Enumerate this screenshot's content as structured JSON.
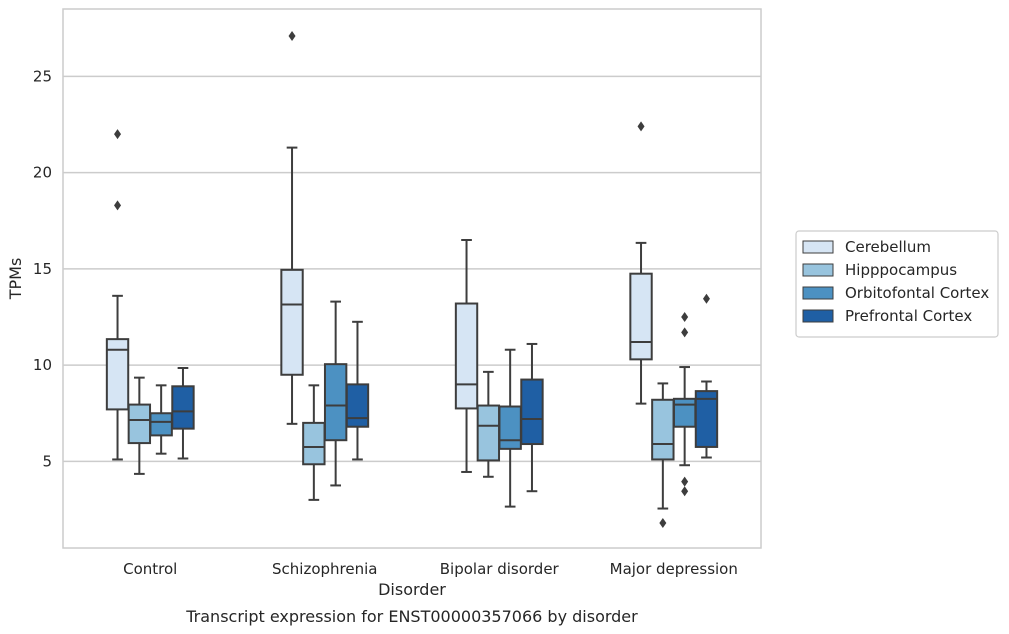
{
  "chart_data": {
    "type": "box",
    "title": "Transcript expression for ENST00000357066 by disorder",
    "xlabel": "Disorder",
    "ylabel": "TPMs",
    "ylim": [
      0.5,
      28.5
    ],
    "yticks": [
      5,
      10,
      15,
      20,
      25
    ],
    "grid": true,
    "legend_position": "right",
    "categories": [
      "Control",
      "Schizophrenia",
      "Bipolar disorder",
      "Major depression"
    ],
    "series": [
      {
        "name": "Cerebellum",
        "color": "#d6e5f4",
        "boxes": [
          {
            "whislo": 5.1,
            "q1": 7.7,
            "med": 10.8,
            "q3": 11.35,
            "whishi": 13.6,
            "fliers": [
              18.3,
              22.0
            ]
          },
          {
            "whislo": 6.95,
            "q1": 9.5,
            "med": 13.15,
            "q3": 14.95,
            "whishi": 21.3,
            "fliers": [
              27.1
            ]
          },
          {
            "whislo": 4.45,
            "q1": 7.75,
            "med": 9.0,
            "q3": 13.2,
            "whishi": 16.5,
            "fliers": []
          },
          {
            "whislo": 8.0,
            "q1": 10.3,
            "med": 11.2,
            "q3": 14.75,
            "whishi": 16.35,
            "fliers": [
              22.4
            ]
          }
        ]
      },
      {
        "name": "Hipppocampus",
        "color": "#98c4de",
        "boxes": [
          {
            "whislo": 4.35,
            "q1": 5.95,
            "med": 7.15,
            "q3": 7.95,
            "whishi": 9.35,
            "fliers": []
          },
          {
            "whislo": 3.0,
            "q1": 4.85,
            "med": 5.75,
            "q3": 7.0,
            "whishi": 8.95,
            "fliers": []
          },
          {
            "whislo": 4.2,
            "q1": 5.05,
            "med": 6.85,
            "q3": 7.9,
            "whishi": 9.65,
            "fliers": []
          },
          {
            "whislo": 2.55,
            "q1": 5.1,
            "med": 5.9,
            "q3": 8.2,
            "whishi": 9.05,
            "fliers": [
              1.8
            ]
          }
        ]
      },
      {
        "name": "Orbitofontal Cortex",
        "color": "#4c91c2",
        "boxes": [
          {
            "whislo": 5.4,
            "q1": 6.35,
            "med": 7.05,
            "q3": 7.5,
            "whishi": 8.95,
            "fliers": []
          },
          {
            "whislo": 3.75,
            "q1": 6.1,
            "med": 7.9,
            "q3": 10.05,
            "whishi": 13.3,
            "fliers": []
          },
          {
            "whislo": 2.65,
            "q1": 5.65,
            "med": 6.1,
            "q3": 7.85,
            "whishi": 10.8,
            "fliers": []
          },
          {
            "whislo": 4.8,
            "q1": 6.8,
            "med": 7.95,
            "q3": 8.25,
            "whishi": 9.9,
            "fliers": [
              3.45,
              3.95,
              11.7,
              12.5
            ]
          }
        ]
      },
      {
        "name": "Prefrontal Cortex",
        "color": "#1f5fa4",
        "boxes": [
          {
            "whislo": 5.15,
            "q1": 6.7,
            "med": 7.6,
            "q3": 8.9,
            "whishi": 9.85,
            "fliers": []
          },
          {
            "whislo": 5.1,
            "q1": 6.8,
            "med": 7.25,
            "q3": 9.0,
            "whishi": 12.25,
            "fliers": []
          },
          {
            "whislo": 3.45,
            "q1": 5.9,
            "med": 7.2,
            "q3": 9.25,
            "whishi": 11.1,
            "fliers": []
          },
          {
            "whislo": 5.2,
            "q1": 5.75,
            "med": 8.25,
            "q3": 8.65,
            "whishi": 9.15,
            "fliers": [
              13.45
            ]
          }
        ]
      }
    ]
  }
}
